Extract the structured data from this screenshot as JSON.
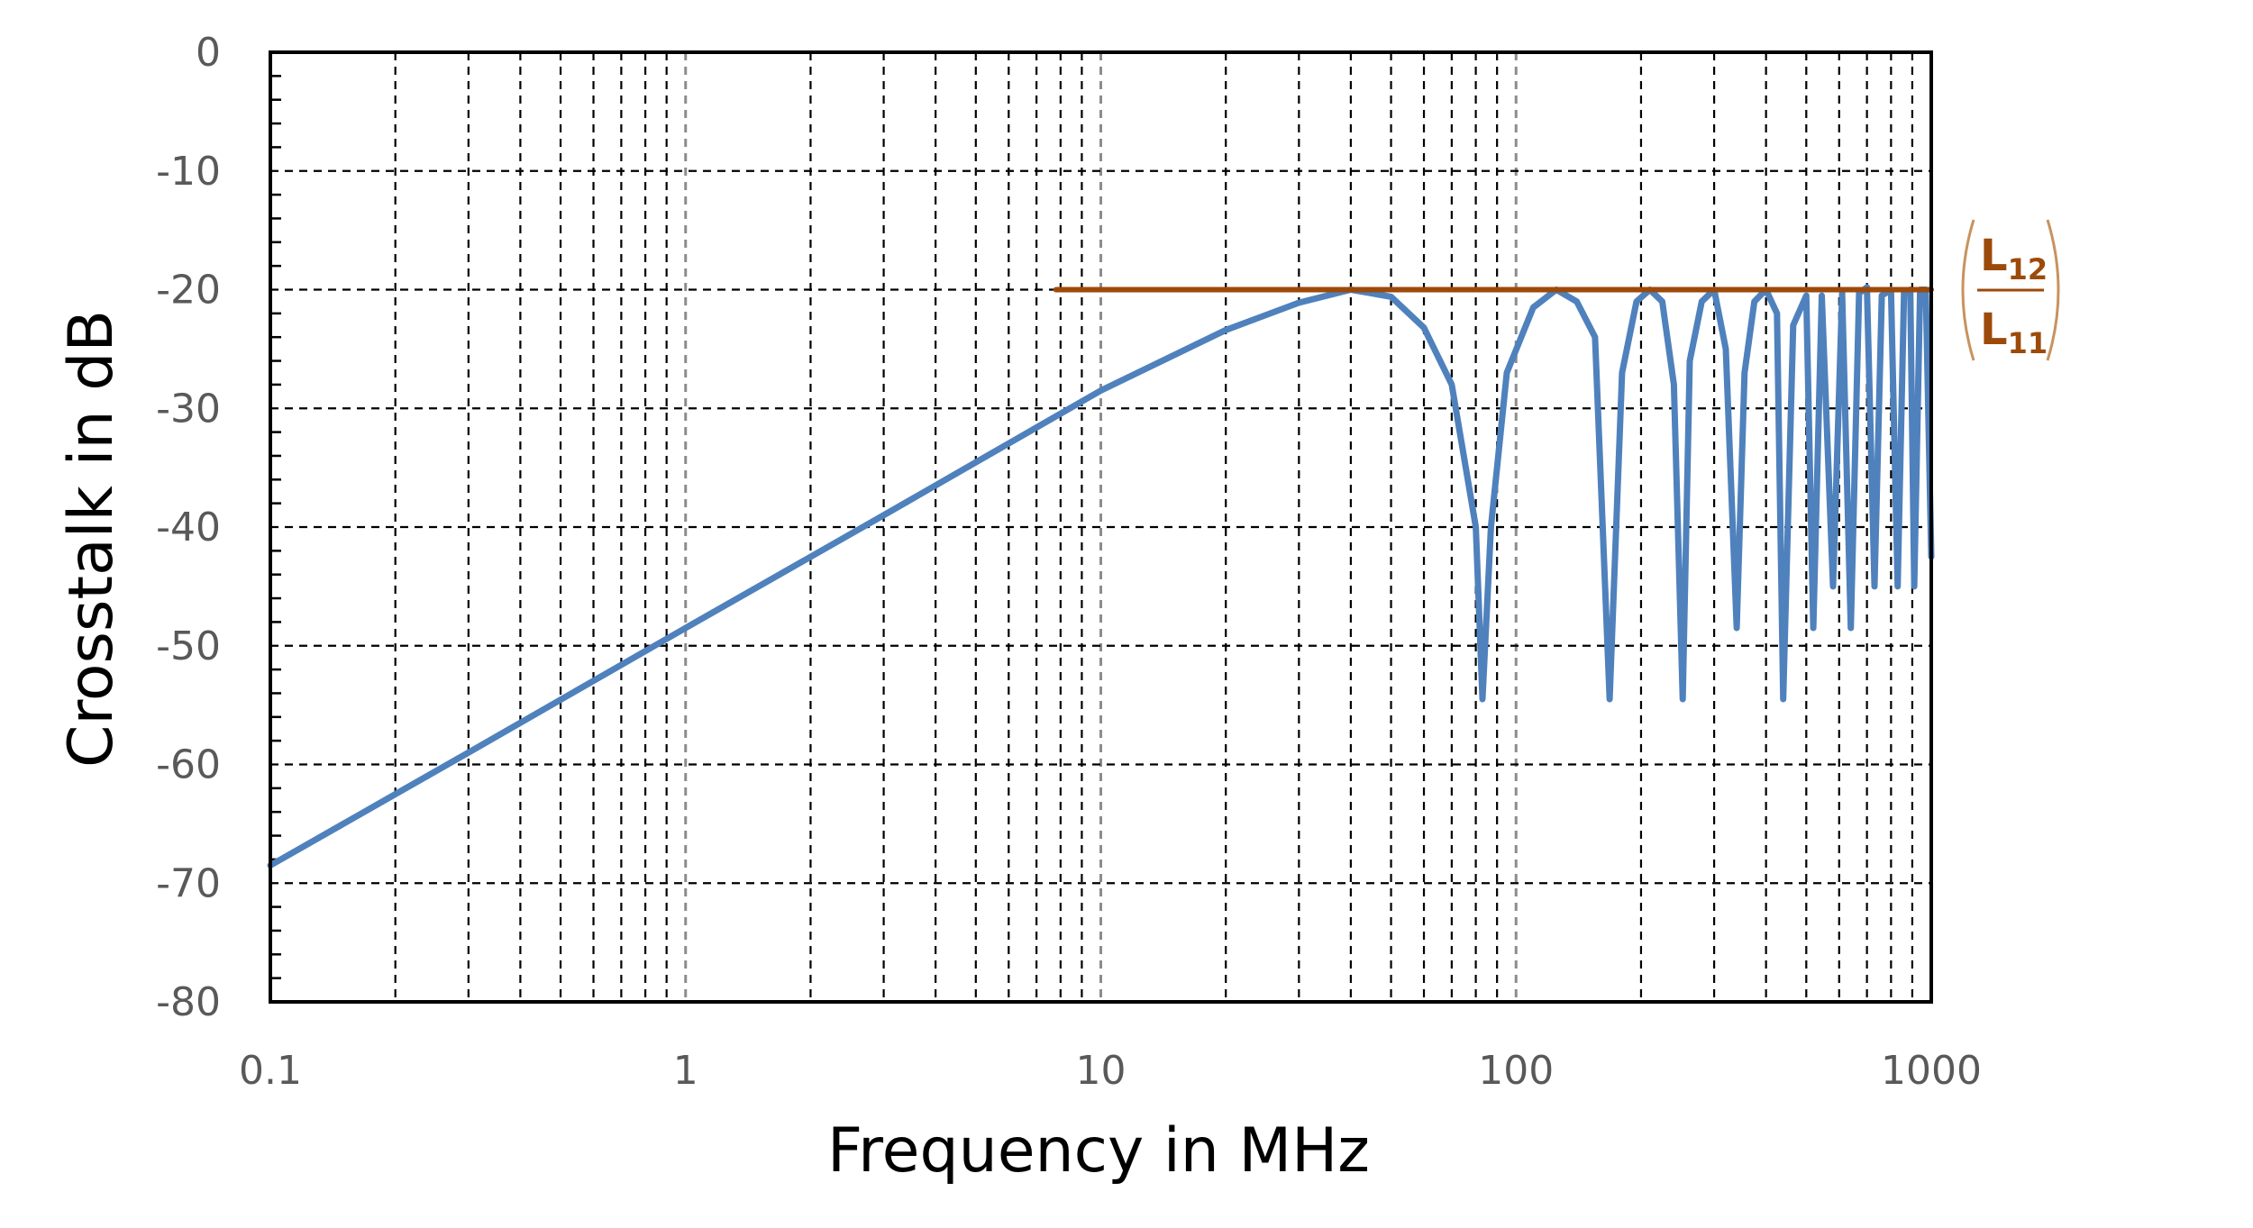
{
  "chart_data": {
    "type": "line",
    "xlabel": "Frequency in MHz",
    "ylabel": "Crosstalk in dB",
    "xscale": "log",
    "xlim": [
      0.1,
      1000
    ],
    "ylim": [
      -80,
      0
    ],
    "x_ticks": [
      0.1,
      1,
      10,
      100,
      1000
    ],
    "x_tick_labels": [
      "0.1",
      "1",
      "10",
      "100",
      "1000"
    ],
    "y_ticks": [
      0,
      -10,
      -20,
      -30,
      -40,
      -50,
      -60,
      -70,
      -80
    ],
    "y_tick_labels": [
      "0",
      "-10",
      "-20",
      "-30",
      "-40",
      "-50",
      "-60",
      "-70",
      "-80"
    ],
    "grid": true,
    "series": [
      {
        "color": "#4f81bd",
        "x": [
          0.1,
          0.3,
          1,
          3,
          10,
          20,
          30,
          40,
          50,
          60,
          70,
          80,
          83,
          87,
          95,
          110,
          125,
          140,
          155,
          168,
          180,
          195,
          210,
          225,
          240,
          252,
          262,
          280,
          300,
          320,
          340,
          355,
          375,
          400,
          425,
          440,
          465,
          500,
          520,
          545,
          580,
          610,
          640,
          670,
          700,
          730,
          760,
          800,
          830,
          860,
          890,
          910,
          940,
          970,
          1000
        ],
        "y": [
          -68.5,
          -59,
          -48.5,
          -39,
          -28.5,
          -23.4,
          -21.1,
          -20,
          -20.6,
          -23.2,
          -28,
          -40,
          -54.5,
          -40,
          -27,
          -21.5,
          -20,
          -21,
          -24,
          -54.5,
          -27,
          -21,
          -20,
          -21,
          -28,
          -54.5,
          -26,
          -21,
          -20,
          -25,
          -48.5,
          -27,
          -21,
          -20,
          -22,
          -54.5,
          -23,
          -20.5,
          -48.5,
          -20.5,
          -45,
          -20.3,
          -48.5,
          -20.3,
          -19.8,
          -45,
          -20.5,
          -20,
          -45,
          -20.2,
          -20,
          -45,
          -20,
          -20,
          -42.5
        ]
      },
      {
        "name": "L12/L11",
        "color": "#9c4a0a",
        "x": [
          7.8,
          1000
        ],
        "y": [
          -20,
          -20
        ]
      }
    ],
    "annotation": {
      "numerator": "L",
      "numerator_sub": "12",
      "denominator": "L",
      "denominator_sub": "11"
    }
  }
}
